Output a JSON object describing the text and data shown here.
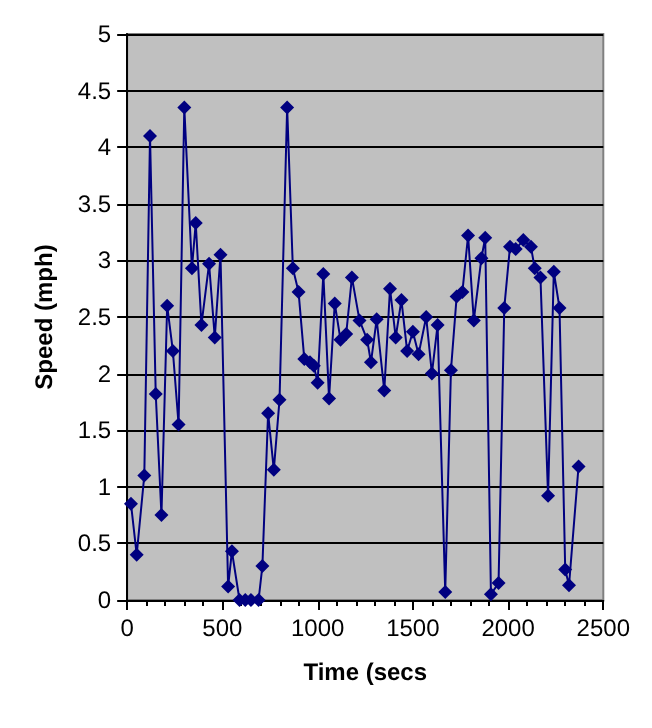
{
  "chart_data": {
    "type": "line",
    "xlabel": "Time (secs",
    "ylabel": "Speed (mph)",
    "xlim": [
      0,
      2500
    ],
    "xticks": [
      0,
      500,
      1000,
      1500,
      2000,
      2500
    ],
    "ylim": [
      0,
      5
    ],
    "yticks": [
      0,
      0.5,
      1,
      1.5,
      2,
      2.5,
      3,
      3.5,
      4,
      4.5,
      5
    ],
    "grid": "y",
    "marker": "diamond",
    "line_style": "solid",
    "series": [
      {
        "color": "#000080",
        "x": [
          20,
          50,
          90,
          120,
          150,
          180,
          210,
          240,
          270,
          300,
          340,
          360,
          390,
          430,
          460,
          490,
          530,
          550,
          590,
          620,
          650,
          690,
          710,
          740,
          770,
          800,
          840,
          870,
          900,
          930,
          960,
          980,
          1000,
          1030,
          1060,
          1090,
          1120,
          1150,
          1180,
          1220,
          1260,
          1280,
          1310,
          1350,
          1380,
          1410,
          1440,
          1470,
          1500,
          1530,
          1570,
          1600,
          1630,
          1670,
          1700,
          1730,
          1760,
          1790,
          1820,
          1860,
          1880,
          1910,
          1950,
          1980,
          2010,
          2040,
          2080,
          2120,
          2140,
          2170,
          2210,
          2240,
          2270,
          2300,
          2320,
          2370
        ],
        "values": [
          0.85,
          0.4,
          1.1,
          4.1,
          1.82,
          0.75,
          2.6,
          2.2,
          1.55,
          4.35,
          2.93,
          3.33,
          2.43,
          2.97,
          2.32,
          3.05,
          0.12,
          0.43,
          0,
          0,
          0,
          0,
          0.3,
          1.65,
          1.15,
          1.77,
          4.35,
          2.93,
          2.72,
          2.13,
          2.1,
          2.07,
          1.92,
          2.88,
          1.78,
          2.62,
          2.3,
          2.35,
          2.85,
          2.47,
          2.3,
          2.1,
          2.48,
          1.85,
          2.75,
          2.32,
          2.65,
          2.2,
          2.37,
          2.17,
          2.5,
          2,
          2.43,
          0.07,
          2.03,
          2.68,
          2.72,
          3.22,
          2.47,
          3.02,
          3.2,
          0.05,
          0.15,
          2.58,
          3.12,
          3.1,
          3.18,
          3.12,
          2.93,
          2.85,
          0.92,
          2.9,
          2.58,
          0.27,
          0.13,
          1.18
        ]
      }
    ]
  }
}
